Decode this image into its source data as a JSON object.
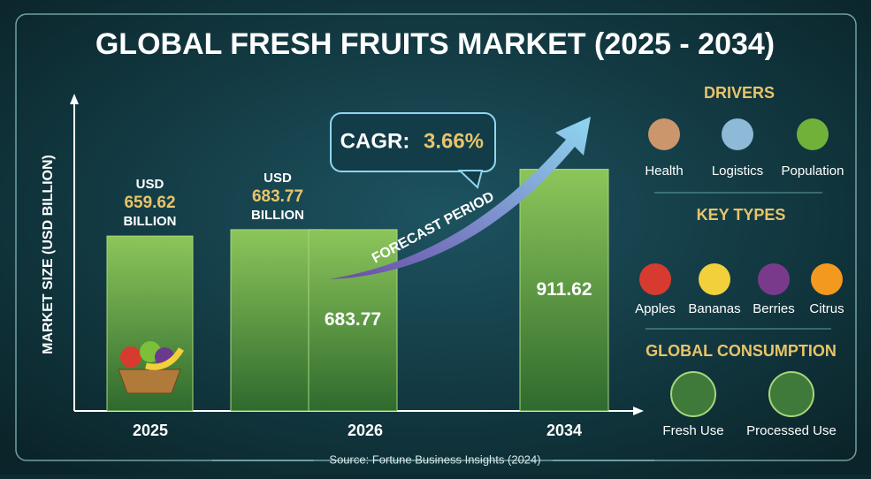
{
  "chart_data": {
    "type": "bar",
    "title": "GLOBAL FRESH FRUITS MARKET (2025 - 2034)",
    "y_label": "MARKET SIZE (USD BILLION)",
    "categories": [
      "2025",
      null,
      "2026",
      "2034"
    ],
    "values": [
      659.62,
      683.77,
      683.77,
      911.62
    ],
    "value_prefix": "USD",
    "value_suffix": "BILLION",
    "color": "#6aa84f",
    "ylim": [
      0,
      1100
    ],
    "annotations": {
      "cagr_label": "CAGR:",
      "cagr_value": "3.66%",
      "forecast": "FORECAST PERIOD"
    },
    "source": "Source: Fortune Business Insights (2024)"
  },
  "drivers": {
    "title": "DRIVERS",
    "items": [
      "Health",
      "Logistics",
      "Population"
    ]
  },
  "key_types": {
    "title": "KEY TYPES",
    "items": [
      "Apples",
      "Bananas",
      "Berries",
      "Citrus"
    ]
  },
  "consumption": {
    "title": "GLOBAL CONSUMPTION",
    "items": [
      "Fresh Use",
      "Processed Use"
    ]
  }
}
